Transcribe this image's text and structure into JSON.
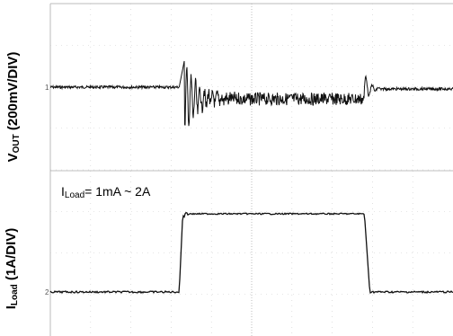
{
  "chart_data": [
    {
      "type": "line",
      "title": "",
      "ylabel_main": "V",
      "ylabel_sub": "OUT",
      "ylabel_rest": " (200mV/DIV)",
      "grid": true,
      "x": [
        0,
        0.1,
        0.2,
        0.3,
        0.4,
        0.5,
        0.6,
        0.7,
        0.8,
        0.9,
        1.0
      ],
      "series": [
        {
          "values_desc": "steady at baseline, sharp ringing at load step, noisy plateau during load, small recovery bump at load release",
          "baseline_div": 0,
          "ring_peak_div": 1.4,
          "ring_trough_div": -2.8,
          "loaded_offset_div": -0.6,
          "release_peak_div": 0.7,
          "step_on_frac": 0.32,
          "step_off_frac": 0.78
        }
      ]
    },
    {
      "type": "line",
      "title": "",
      "ylabel_main": "I",
      "ylabel_sub": "Load",
      "ylabel_rest": " (1A/DIV)",
      "annotation_main": "I",
      "annotation_sub": "Load",
      "annotation_rest": "= 1mA ~ 2A",
      "grid": true,
      "series": [
        {
          "low_value_A": 0.001,
          "high_value_A": 2,
          "step_on_frac": 0.32,
          "step_off_frac": 0.78
        }
      ]
    }
  ]
}
